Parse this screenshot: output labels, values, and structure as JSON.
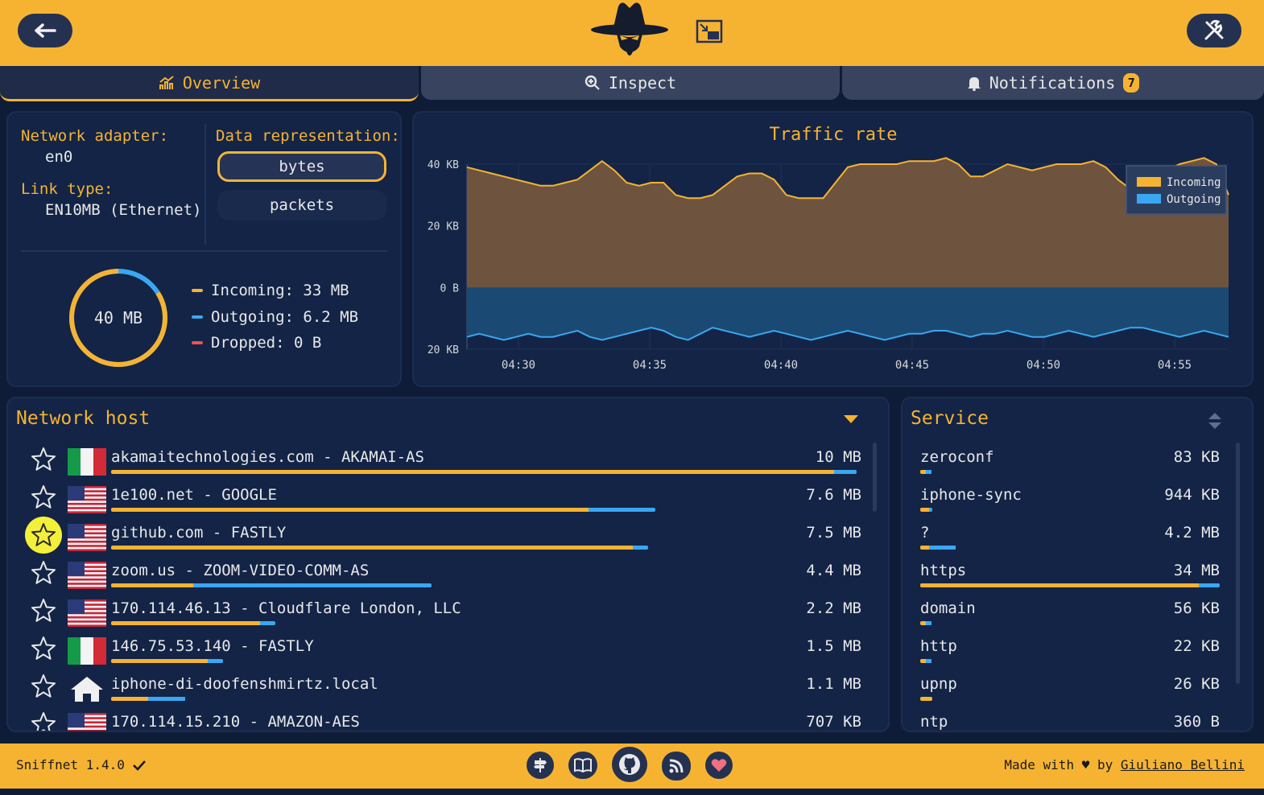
{
  "tabs": [
    {
      "label": "Overview"
    },
    {
      "label": "Inspect"
    },
    {
      "label": "Notifications",
      "badge": "7"
    }
  ],
  "info": {
    "adapter_label": "Network adapter:",
    "adapter_value": "en0",
    "link_label": "Link type:",
    "link_value": "EN10MB (Ethernet)",
    "repr_label": "Data representation:",
    "repr_options": [
      "bytes",
      "packets"
    ],
    "repr_selected": "bytes",
    "total": "40 MB",
    "incoming": "Incoming: 33 MB",
    "outgoing": "Outgoing: 6.2 MB",
    "dropped": "Dropped: 0 B",
    "incoming_fraction": 0.84
  },
  "chart_data": {
    "type": "area",
    "title": "Traffic rate",
    "x_ticks": [
      "04:30",
      "04:35",
      "04:40",
      "04:45",
      "04:50",
      "04:55"
    ],
    "y_ticks": [
      "40 KB",
      "20 KB",
      "0 B",
      "20 KB"
    ],
    "ylim": [
      -20,
      40
    ],
    "legend_position": "top-right",
    "series": [
      {
        "name": "Incoming",
        "color": "#f6b332",
        "values": [
          39,
          38,
          37,
          36,
          35,
          34,
          33,
          33,
          34,
          35,
          38,
          41,
          38,
          34,
          33,
          34,
          34,
          30,
          29,
          29,
          30,
          33,
          36,
          37,
          37,
          35,
          30,
          29,
          29,
          29,
          34,
          39,
          40,
          40,
          40,
          40,
          41,
          41,
          41,
          42,
          40,
          36,
          36,
          38,
          40,
          39,
          38,
          39,
          40,
          40,
          40,
          41,
          39,
          35,
          32,
          33,
          35,
          38,
          40,
          41,
          42,
          40,
          30
        ]
      },
      {
        "name": "Outgoing",
        "color": "#3aa7f2",
        "values": [
          -16,
          -15,
          -16,
          -17,
          -16,
          -15,
          -16,
          -16,
          -15,
          -14,
          -16,
          -17,
          -16,
          -15,
          -14,
          -13,
          -14,
          -16,
          -17,
          -15,
          -13,
          -14,
          -15,
          -16,
          -15,
          -14,
          -15,
          -16,
          -17,
          -16,
          -15,
          -14,
          -15,
          -16,
          -17,
          -16,
          -15,
          -15,
          -14,
          -14,
          -15,
          -16,
          -15,
          -15,
          -14,
          -15,
          -16,
          -16,
          -15,
          -14,
          -15,
          -16,
          -15,
          -14,
          -13,
          -13,
          -14,
          -15,
          -16,
          -15,
          -14,
          -15,
          -16
        ]
      }
    ]
  },
  "hosts": {
    "title": "Network host",
    "items": [
      {
        "name": "akamaitechnologies.com - AKAMAI-AS",
        "size": "10 MB",
        "flag": "it",
        "fav": false,
        "in": 0.97,
        "out": 0.03
      },
      {
        "name": "1e100.net - GOOGLE",
        "size": "7.6 MB",
        "flag": "us",
        "fav": false,
        "in": 0.64,
        "out": 0.09
      },
      {
        "name": "github.com - FASTLY",
        "size": "7.5 MB",
        "flag": "us",
        "fav": true,
        "in": 0.7,
        "out": 0.02
      },
      {
        "name": "zoom.us - ZOOM-VIDEO-COMM-AS",
        "size": "4.4 MB",
        "flag": "us",
        "fav": false,
        "in": 0.11,
        "out": 0.32
      },
      {
        "name": "170.114.46.13 - Cloudflare London, LLC",
        "size": "2.2 MB",
        "flag": "us",
        "fav": false,
        "in": 0.2,
        "out": 0.02
      },
      {
        "name": "146.75.53.140 - FASTLY",
        "size": "1.5 MB",
        "flag": "it",
        "fav": false,
        "in": 0.13,
        "out": 0.02
      },
      {
        "name": "iphone-di-doofenshmirtz.local",
        "size": "1.1 MB",
        "flag": "home",
        "fav": false,
        "in": 0.05,
        "out": 0.05
      },
      {
        "name": "170.114.15.210 - AMAZON-AES",
        "size": "707 KB",
        "flag": "us",
        "fav": false,
        "in": 0.05,
        "out": 0.03
      }
    ]
  },
  "services": {
    "title": "Service",
    "items": [
      {
        "name": "zeroconf",
        "size": "83 KB",
        "in": 0.02,
        "out": 0.02
      },
      {
        "name": "iphone-sync",
        "size": "944 KB",
        "in": 0.03,
        "out": 0.01
      },
      {
        "name": "?",
        "size": "4.2 MB",
        "in": 0.03,
        "out": 0.09
      },
      {
        "name": "https",
        "size": "34 MB",
        "in": 0.93,
        "out": 0.07
      },
      {
        "name": "domain",
        "size": "56 KB",
        "in": 0.02,
        "out": 0.02
      },
      {
        "name": "http",
        "size": "22 KB",
        "in": 0.02,
        "out": 0.02
      },
      {
        "name": "upnp",
        "size": "26 KB",
        "in": 0.04,
        "out": 0.0
      },
      {
        "name": "ntp",
        "size": "360 B",
        "in": 0.01,
        "out": 0.0
      }
    ]
  },
  "footer": {
    "version": "Sniffnet 1.4.0",
    "made_with": "Made with ♥ by",
    "author": "Giuliano Bellini"
  },
  "colors": {
    "accent": "#f6b332",
    "incoming": "#f6b332",
    "outgoing": "#3aa7f2",
    "dropped": "#f05050"
  }
}
